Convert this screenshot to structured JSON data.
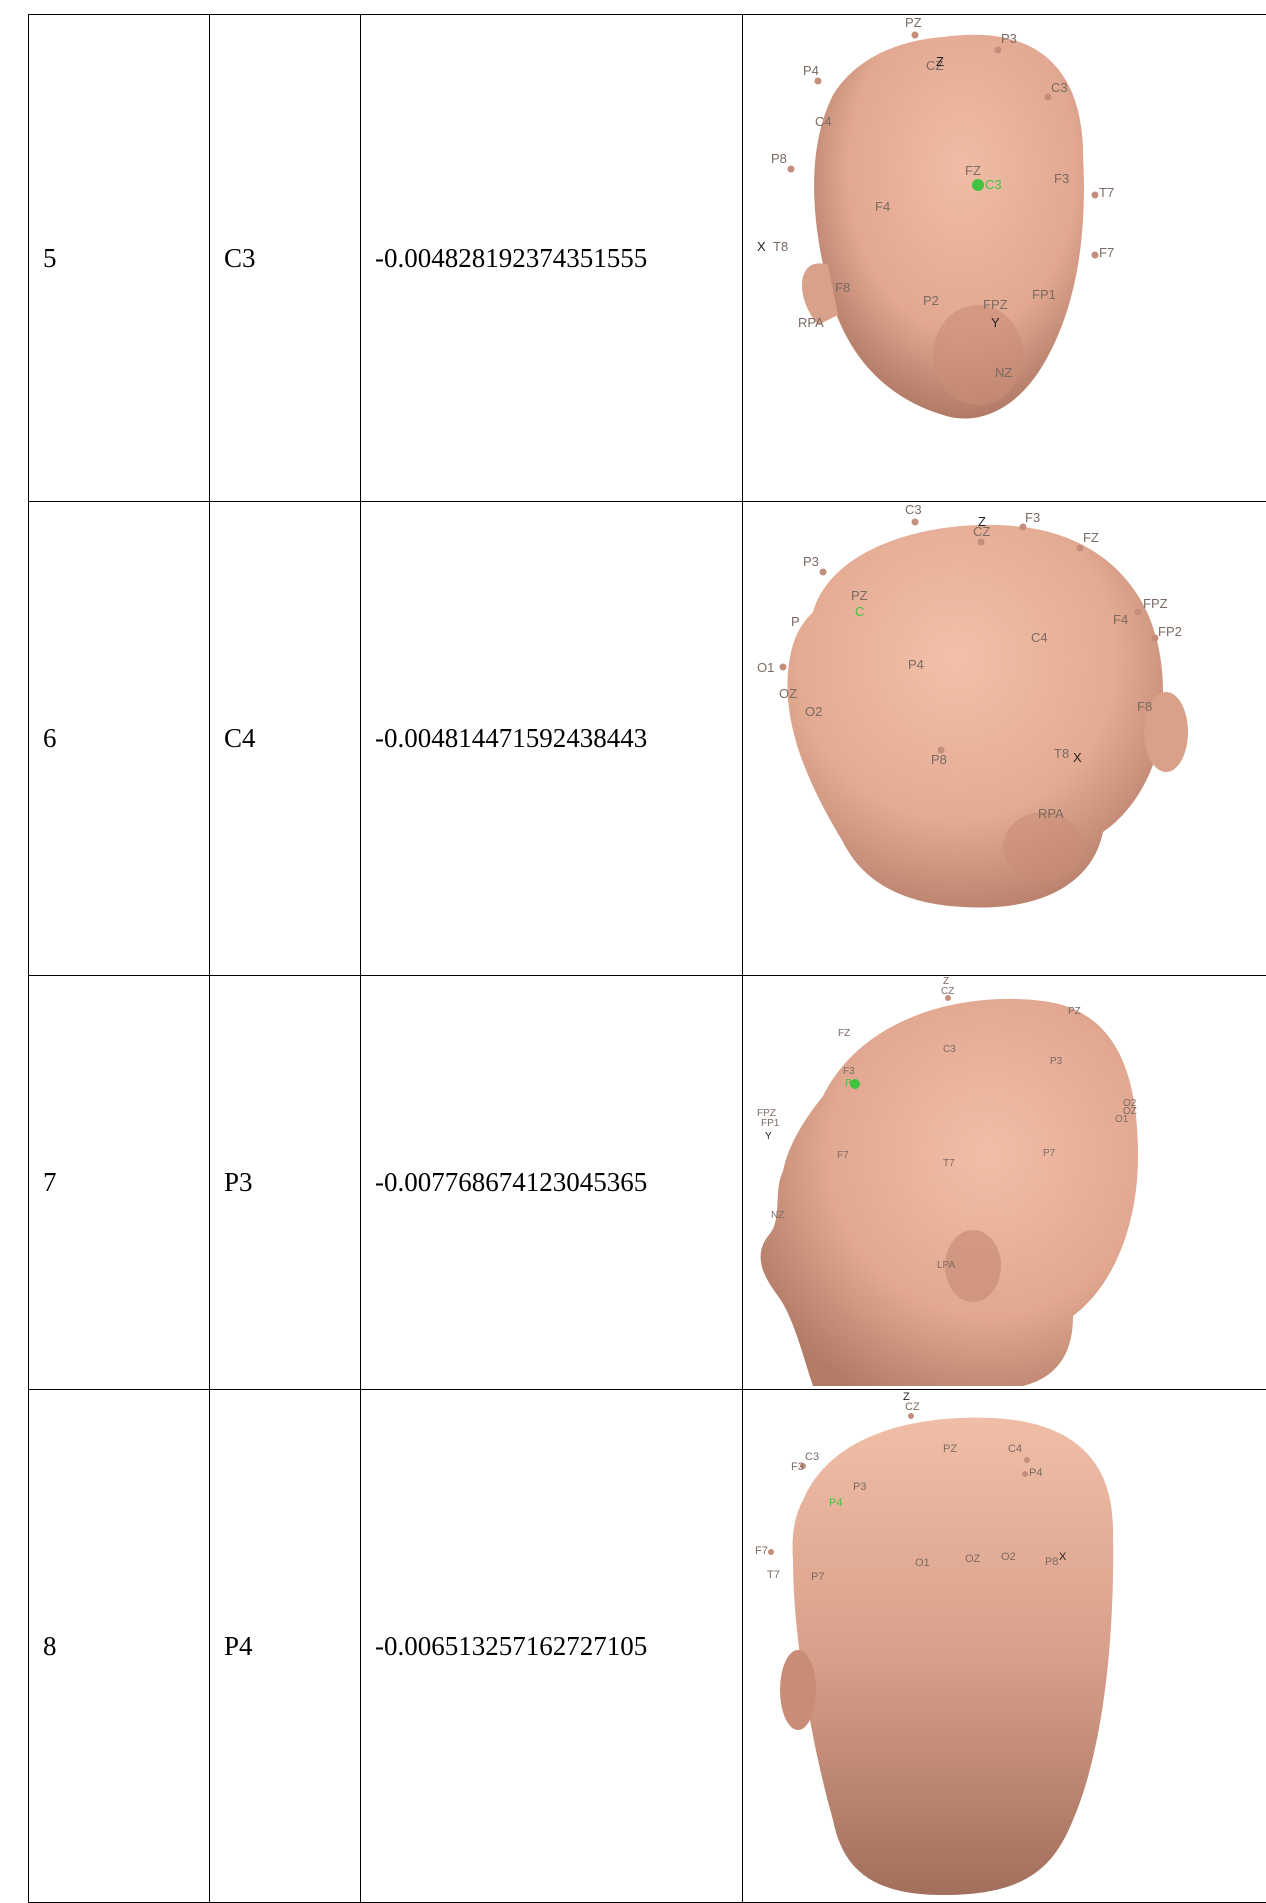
{
  "rows": [
    {
      "index": "5",
      "channel": "C3",
      "value": "-0.004828192374351555",
      "view": "front",
      "highlight": "C3",
      "electrodes": [
        "PZ",
        "P3",
        "P4",
        "CZ",
        "C3",
        "C4",
        "P8",
        "FZ",
        "F3",
        "T7",
        "F4",
        "T8",
        "F7",
        "F8",
        "P2",
        "FPZ",
        "FP1",
        "RPA",
        "NZ"
      ],
      "axes": [
        "X",
        "Y",
        "Z"
      ]
    },
    {
      "index": "6",
      "channel": "C4",
      "value": "-0.004814471592438443",
      "view": "rear-right",
      "highlight": "C",
      "electrodes": [
        "C3",
        "CZ",
        "F3",
        "FZ",
        "P3",
        "PZ",
        "P",
        "FPZ",
        "F4",
        "FP2",
        "C4",
        "O1",
        "P4",
        "OZ",
        "O2",
        "F8",
        "P8",
        "T8",
        "RPA"
      ],
      "axes": [
        "X",
        "Z"
      ]
    },
    {
      "index": "7",
      "channel": "P3",
      "value": "-0.007768674123045365",
      "view": "left",
      "highlight": "P",
      "electrodes": [
        "CZ",
        "PZ",
        "FZ",
        "C3",
        "P3",
        "F3",
        "FPZ",
        "FP1",
        "O2",
        "OZ",
        "O1",
        "F7",
        "T7",
        "P7",
        "NZ",
        "LPA"
      ],
      "axes": [
        "Y",
        "Z"
      ]
    },
    {
      "index": "8",
      "channel": "P4",
      "value": "-0.006513257162727105",
      "view": "back",
      "highlight": "P4",
      "electrodes": [
        "CZ",
        "PZ",
        "C4",
        "C3",
        "F3",
        "P4",
        "P3",
        "F7",
        "O1",
        "OZ",
        "O2",
        "P8",
        "T7",
        "P7"
      ],
      "axes": [
        "X",
        "Z"
      ]
    }
  ]
}
